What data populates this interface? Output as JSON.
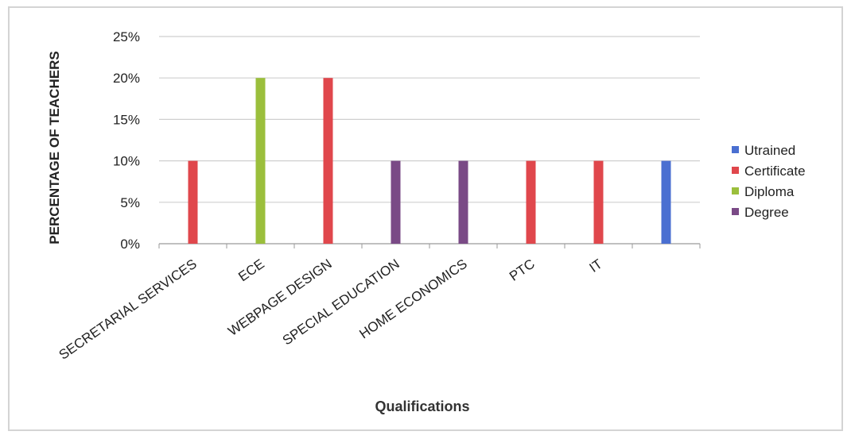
{
  "chart_data": {
    "type": "bar",
    "title": "",
    "xlabel": "Qualifications",
    "ylabel": "PERCENTAGE OF TEACHERS",
    "ylim": [
      0,
      25
    ],
    "y_ticks": [
      "0%",
      "5%",
      "10%",
      "15%",
      "20%",
      "25%"
    ],
    "y_tick_values": [
      0,
      5,
      10,
      15,
      20,
      25
    ],
    "grid": true,
    "legend_position": "right",
    "categories": [
      "SECRETARIAL SERVICES",
      "ECE",
      "WEBPAGE DESIGN",
      "SPECIAL EDUCATION",
      "HOME ECONOMICS",
      "PTC",
      "IT",
      ""
    ],
    "series": [
      {
        "name": "Utrained",
        "color": "#4a6fd1",
        "values": [
          0,
          0,
          0,
          0,
          0,
          0,
          0,
          10
        ]
      },
      {
        "name": "Certificate",
        "color": "#e0474c",
        "values": [
          10,
          0,
          20,
          0,
          0,
          10,
          10,
          0
        ]
      },
      {
        "name": "Diploma",
        "color": "#9bbf3c",
        "values": [
          0,
          20,
          0,
          0,
          0,
          0,
          0,
          0
        ]
      },
      {
        "name": "Degree",
        "color": "#7a4a86",
        "values": [
          0,
          0,
          0,
          10,
          10,
          0,
          0,
          0
        ]
      }
    ]
  }
}
